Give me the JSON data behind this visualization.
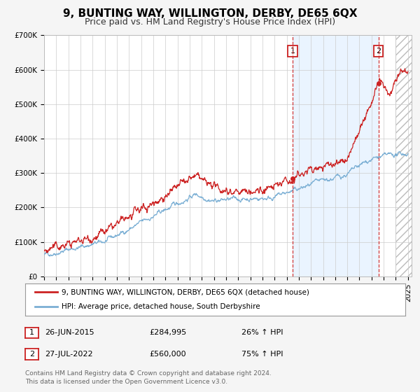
{
  "title": "9, BUNTING WAY, WILLINGTON, DERBY, DE65 6QX",
  "subtitle": "Price paid vs. HM Land Registry's House Price Index (HPI)",
  "ylim": [
    0,
    700000
  ],
  "yticks": [
    0,
    100000,
    200000,
    300000,
    400000,
    500000,
    600000,
    700000
  ],
  "ytick_labels": [
    "£0",
    "£100K",
    "£200K",
    "£300K",
    "£400K",
    "£500K",
    "£600K",
    "£700K"
  ],
  "xlim_start": 1995.0,
  "xlim_end": 2025.3,
  "hpi_color": "#7bafd4",
  "price_color": "#cc2222",
  "vline1_date": 2015.49,
  "vline2_date": 2022.57,
  "marker1_price": 284995,
  "marker2_price": 560000,
  "vline_color": "#cc2222",
  "shade_color": "#ddeeff",
  "shade_alpha": 0.6,
  "hatch_start": 2024.0,
  "legend_label_price": "9, BUNTING WAY, WILLINGTON, DERBY, DE65 6QX (detached house)",
  "legend_label_hpi": "HPI: Average price, detached house, South Derbyshire",
  "annotation1_date": "26-JUN-2015",
  "annotation1_price": "£284,995",
  "annotation1_hpi": "26% ↑ HPI",
  "annotation2_date": "27-JUL-2022",
  "annotation2_price": "£560,000",
  "annotation2_hpi": "75% ↑ HPI",
  "footnote": "Contains HM Land Registry data © Crown copyright and database right 2024.\nThis data is licensed under the Open Government Licence v3.0.",
  "bg_color": "#f5f5f5",
  "plot_bg_color": "#ffffff",
  "title_fontsize": 11,
  "subtitle_fontsize": 9,
  "tick_fontsize": 7.5,
  "legend_fontsize": 7.5,
  "ann_fontsize": 8
}
